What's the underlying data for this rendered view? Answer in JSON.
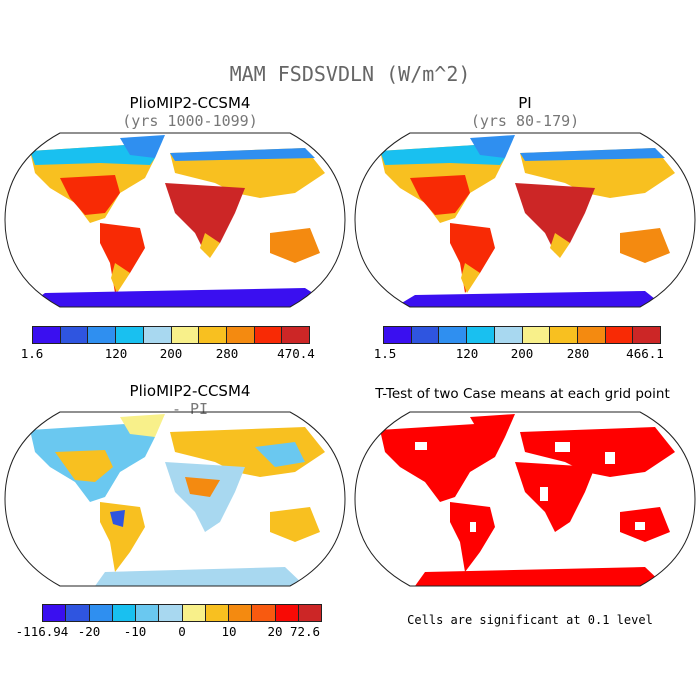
{
  "figure": {
    "title": "MAM FSDSVDLN (W/m^2)"
  },
  "panels": {
    "p1": {
      "title": "PlioMIP2-CCSM4",
      "subtitle": "(yrs 1000-1099)"
    },
    "p2": {
      "title": "PI",
      "subtitle": "(yrs 80-179)"
    },
    "p3": {
      "title": "PlioMIP2-CCSM4",
      "subtitle": "- PI"
    },
    "p4": {
      "title": "T-Test of two Case means at each grid point",
      "note": "Cells are significant at 0.1 level"
    }
  },
  "colorbars": {
    "cb1": {
      "labels": [
        "1.6",
        "120",
        "200",
        "280",
        "470.4"
      ],
      "colors": [
        "#3a0ff0",
        "#2f55e0",
        "#2f8ff0",
        "#19c0f0",
        "#a8d8f0",
        "#f8f08a",
        "#f8c020",
        "#f48a10",
        "#f82a05",
        "#cc2626"
      ]
    },
    "cb2": {
      "labels": [
        "1.5",
        "120",
        "200",
        "280",
        "466.1"
      ],
      "colors": [
        "#3a0ff0",
        "#2f55e0",
        "#2f8ff0",
        "#19c0f0",
        "#a8d8f0",
        "#f8f08a",
        "#f8c020",
        "#f48a10",
        "#f82a05",
        "#cc2626"
      ]
    },
    "cb3": {
      "labels": [
        "-116.94",
        "-20",
        "-10",
        "0",
        "10",
        "20",
        "72.6"
      ],
      "colors": [
        "#3a0ff0",
        "#2f55e0",
        "#2f8ff0",
        "#19c0f0",
        "#6ac8f0",
        "#a8d8f0",
        "#f8f08a",
        "#f8c020",
        "#f48a10",
        "#f85a10",
        "#f80a05",
        "#cc2626"
      ]
    }
  },
  "colors": {
    "significant": "#ff0000",
    "coast": "#222222"
  }
}
